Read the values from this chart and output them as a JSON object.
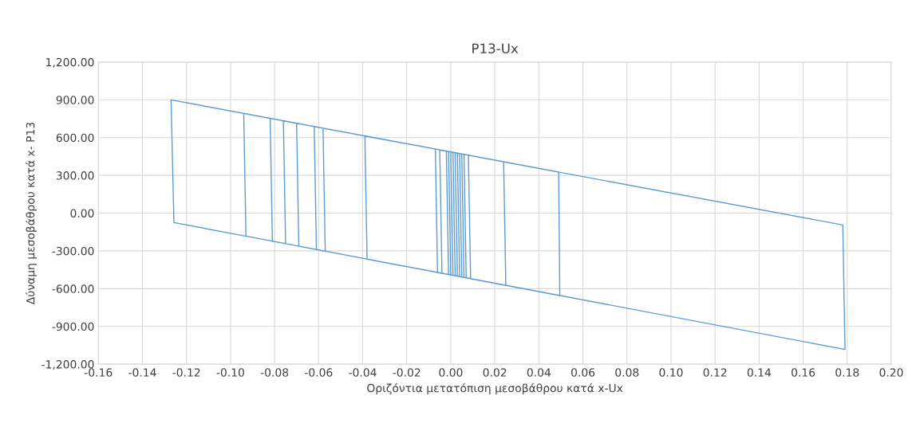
{
  "chart_data": {
    "type": "line",
    "title": "P13-Ux",
    "xlabel": "Οριζόντια μετατόπιση μεσοβάθρου κατά x-Ux",
    "ylabel": "Δύναμη μεσοβάθρου κατά x- P13",
    "series": [
      {
        "color": "#5b9bd5",
        "x": [
          0.0,
          0.001,
          0.003,
          0.002,
          0.004,
          0.005,
          0.0,
          -0.001,
          0.003,
          0.004,
          0.002,
          0.001,
          -0.002,
          -0.001,
          0.006,
          0.005,
          -0.005,
          -0.004,
          0.007,
          0.006,
          -0.007,
          -0.006,
          0.009,
          0.008,
          0.024,
          0.025,
          -0.038,
          -0.039,
          0.049,
          0.0495,
          -0.061,
          -0.062,
          -0.058,
          -0.057,
          -0.069,
          -0.07,
          -0.076,
          -0.075,
          -0.081,
          -0.082,
          -0.094,
          -0.093,
          0.179,
          0.178,
          -0.127,
          -0.1257,
          -0.093
        ],
        "values": [
          486,
          -494,
          -501,
          480,
          473,
          -508,
          -491,
          489,
          476,
          -504,
          -498,
          483,
          493,
          -488,
          -511,
          470,
          502,
          -478,
          -514,
          467,
          509,
          -471,
          -521,
          460,
          408,
          -574,
          -365,
          614,
          326,
          -655,
          -289,
          688,
          675,
          -302,
          -263,
          714,
          734,
          -243,
          -223,
          753,
          792,
          -183,
          -1083,
          -94,
          900,
          -75,
          -183
        ]
      }
    ],
    "xlim": [
      -0.16,
      0.2
    ],
    "xticks": [
      {
        "value": -0.16,
        "label": "-0.16"
      },
      {
        "value": -0.14,
        "label": "-0.14"
      },
      {
        "value": -0.12,
        "label": "-0.12"
      },
      {
        "value": -0.1,
        "label": "-0.10"
      },
      {
        "value": -0.08,
        "label": "-0.08"
      },
      {
        "value": -0.06,
        "label": "-0.06"
      },
      {
        "value": -0.04,
        "label": "-0.04"
      },
      {
        "value": -0.02,
        "label": "-0.02"
      },
      {
        "value": 0,
        "label": "0.00"
      },
      {
        "value": 0.02,
        "label": "0.02"
      },
      {
        "value": 0.04,
        "label": "0.04"
      },
      {
        "value": 0.06,
        "label": "0.06"
      },
      {
        "value": 0.08,
        "label": "0.08"
      },
      {
        "value": 0.1,
        "label": "0.10"
      },
      {
        "value": 0.12,
        "label": "0.12"
      },
      {
        "value": 0.14,
        "label": "0.14"
      },
      {
        "value": 0.16,
        "label": "0.16"
      },
      {
        "value": 0.18,
        "label": "0.18"
      },
      {
        "value": 0.2,
        "label": "0.20"
      }
    ],
    "ylim": [
      -1200,
      1200
    ],
    "yticks": [
      {
        "value": 1200,
        "label": "1,200.00"
      },
      {
        "value": 900,
        "label": "900.00"
      },
      {
        "value": 600,
        "label": "600.00"
      },
      {
        "value": 300,
        "label": "300.00"
      },
      {
        "value": 0,
        "label": "0.00"
      },
      {
        "value": -300,
        "label": "-300.00"
      },
      {
        "value": -600,
        "label": "-600.00"
      },
      {
        "value": -900,
        "label": "-900.00"
      },
      {
        "value": -1200,
        "label": "-1,200.00"
      }
    ],
    "grid": true,
    "marker": "none",
    "line_style": "solid",
    "legend": false
  }
}
